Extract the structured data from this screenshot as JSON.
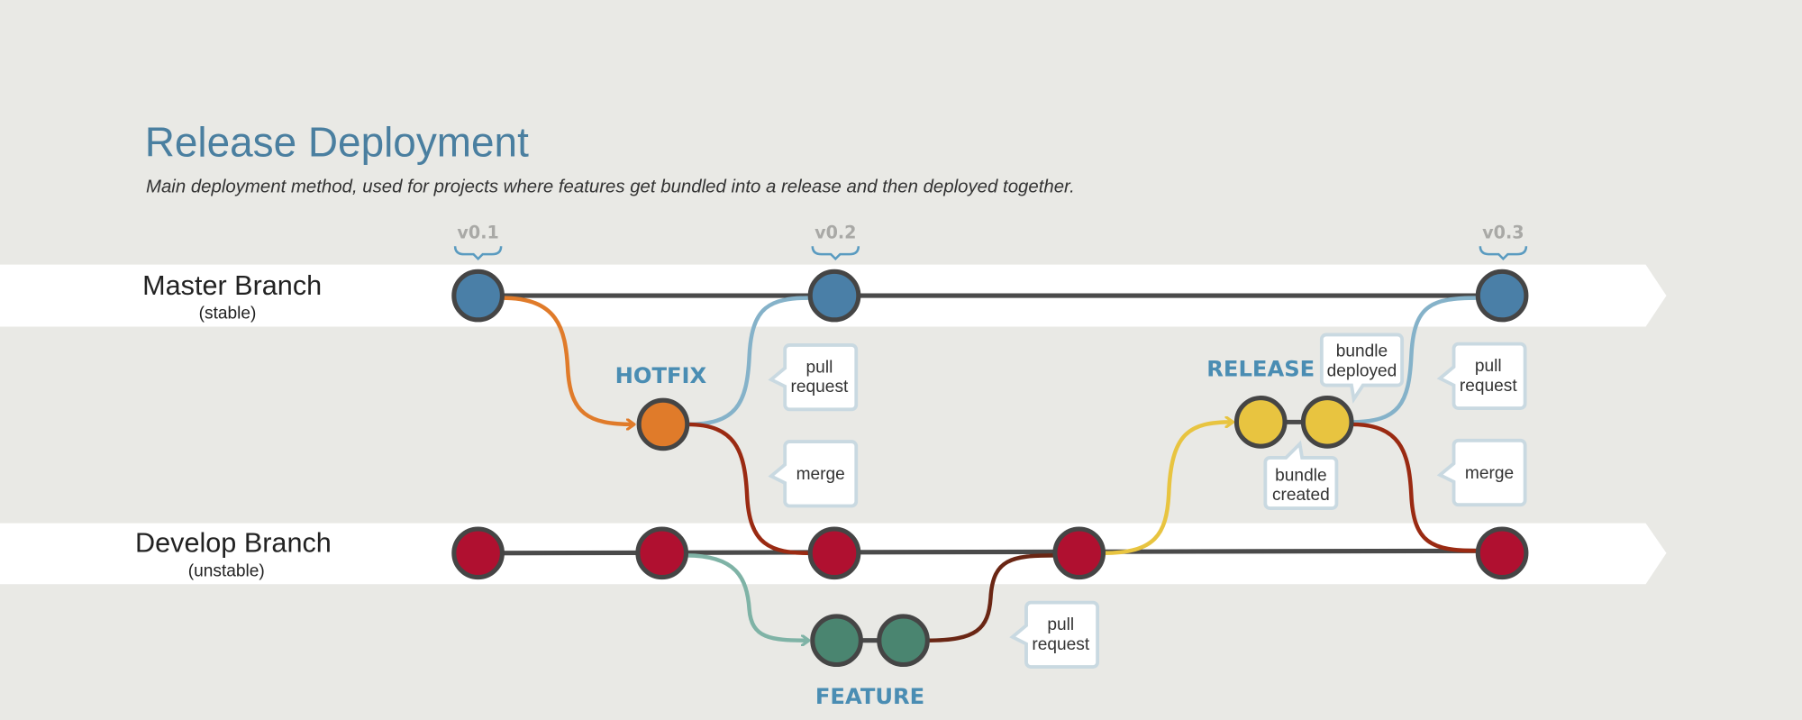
{
  "header": {
    "title": "Release Deployment",
    "subtitle": "Main deployment method, used for projects where features get bundled into a release and then deployed together."
  },
  "branches": [
    {
      "name": "Master Branch",
      "note": "(stable)"
    },
    {
      "name": "Develop Branch",
      "note": "(unstable)"
    }
  ],
  "versions": [
    "v0.1",
    "v0.2",
    "v0.3"
  ],
  "labels": {
    "hotfix": "HOTFIX",
    "release": "RELEASE",
    "feature": "FEATURE"
  },
  "callouts": [
    {
      "lines": [
        "pull",
        "request"
      ]
    },
    {
      "lines": [
        "merge"
      ]
    },
    {
      "lines": [
        "bundle",
        "deployed"
      ]
    },
    {
      "lines": [
        "bundle",
        "created"
      ]
    },
    {
      "lines": [
        "pull",
        "request"
      ]
    },
    {
      "lines": [
        "merge"
      ]
    },
    {
      "lines": [
        "pull",
        "request"
      ]
    }
  ]
}
